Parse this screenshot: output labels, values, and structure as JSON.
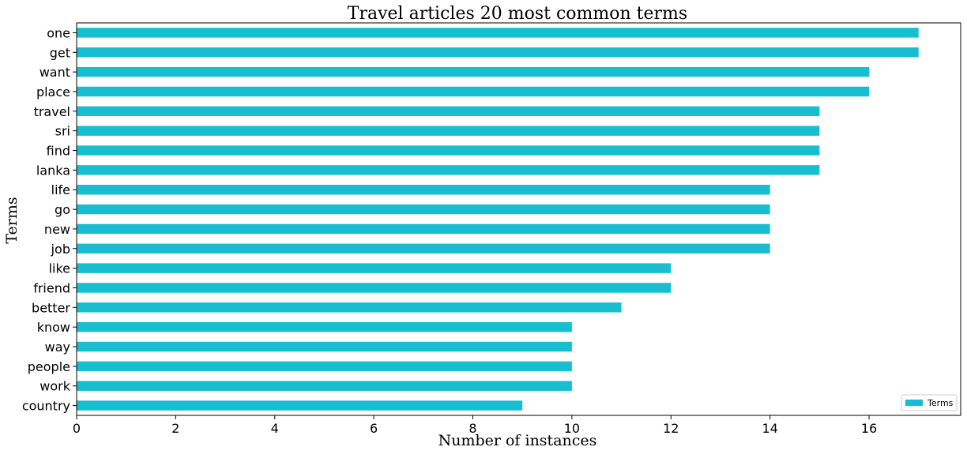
{
  "chart_data": {
    "type": "bar",
    "orientation": "horizontal",
    "title": "Travel articles 20 most common terms",
    "xlabel": "Number of instances",
    "ylabel": "Terms",
    "categories": [
      "one",
      "get",
      "want",
      "place",
      "travel",
      "sri",
      "find",
      "lanka",
      "life",
      "go",
      "new",
      "job",
      "like",
      "friend",
      "better",
      "know",
      "way",
      "people",
      "work",
      "country"
    ],
    "series": [
      {
        "name": "Terms",
        "color": "#17becf",
        "values": [
          17,
          17,
          16,
          16,
          15,
          15,
          15,
          15,
          14,
          14,
          14,
          14,
          12,
          12,
          11,
          10,
          10,
          10,
          10,
          9
        ]
      }
    ],
    "xlim": [
      0,
      17.85
    ],
    "xticks": [
      0,
      2,
      4,
      6,
      8,
      10,
      12,
      14,
      16
    ],
    "grid": false,
    "legend": "bottom-right"
  }
}
